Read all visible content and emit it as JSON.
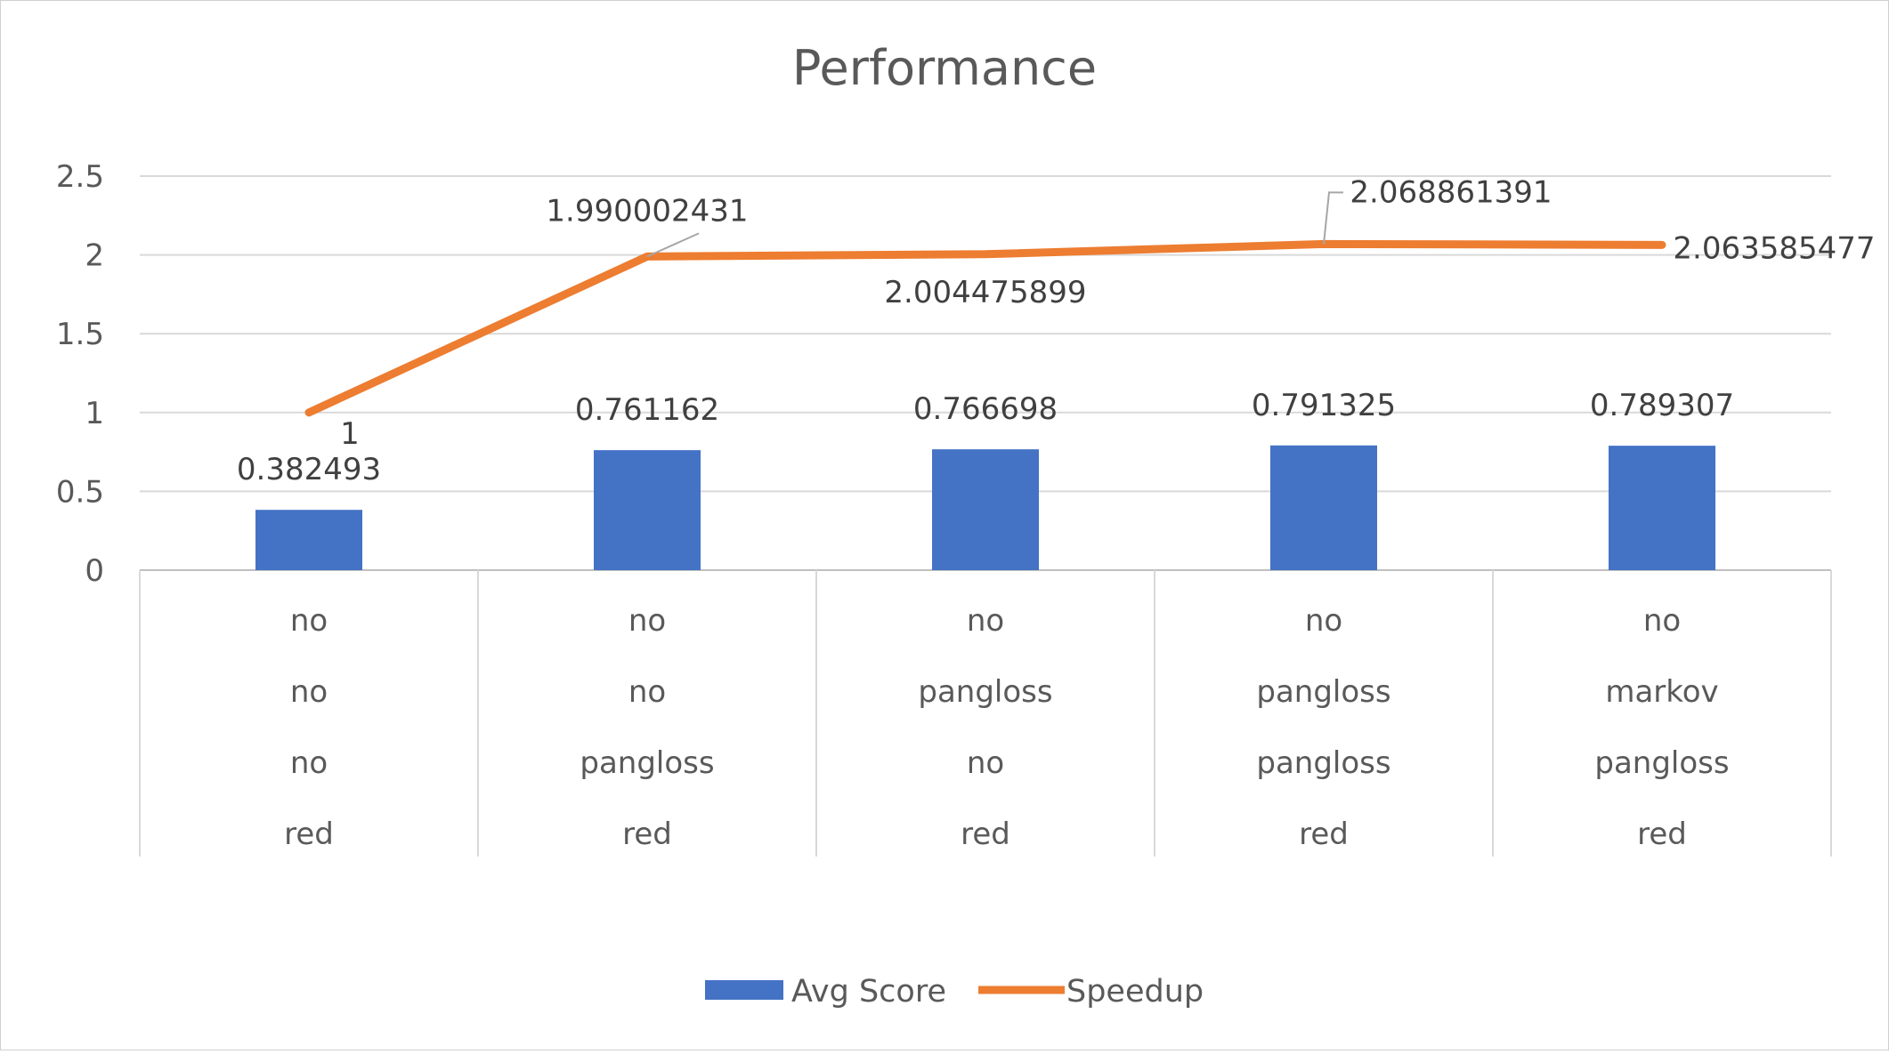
{
  "chart_data": {
    "type": "bar",
    "title": "Performance",
    "xlabel": "",
    "ylabel": "",
    "ylim": [
      0,
      2.5
    ],
    "yticks": [
      "0",
      "0.5",
      "1",
      "1.5",
      "2",
      "2.5"
    ],
    "ytick_values": [
      0,
      0.5,
      1,
      1.5,
      2,
      2.5
    ],
    "grid": true,
    "legend_position": "bottom",
    "categories": [
      [
        "no",
        "no",
        "no",
        "red"
      ],
      [
        "no",
        "no",
        "pangloss",
        "red"
      ],
      [
        "no",
        "pangloss",
        "no",
        "red"
      ],
      [
        "no",
        "pangloss",
        "pangloss",
        "red"
      ],
      [
        "no",
        "markov",
        "pangloss",
        "red"
      ]
    ],
    "series": [
      {
        "name": "Avg Score",
        "type": "bar",
        "color": "#4472C4",
        "values": [
          0.382493,
          0.761162,
          0.766698,
          0.791325,
          0.789307
        ],
        "labels": [
          "0.382493",
          "0.761162",
          "0.766698",
          "0.791325",
          "0.789307"
        ]
      },
      {
        "name": "Speedup",
        "type": "line",
        "color": "#ED7D31",
        "values": [
          1,
          1.990002431,
          2.004475899,
          2.068861391,
          2.063585477
        ],
        "labels": [
          "1",
          "1.990002431",
          "2.004475899",
          "2.068861391",
          "2.063585477"
        ]
      }
    ]
  }
}
